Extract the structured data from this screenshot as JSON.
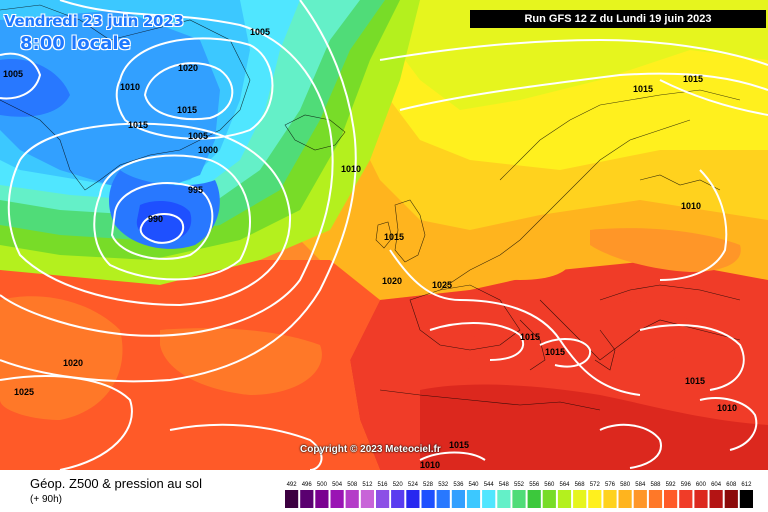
{
  "map": {
    "date_text": "Vendredi 23 juin 2023",
    "time_text": "8:00 locale",
    "run_text": "Run GFS 12 Z du Lundi 19 juin 2023",
    "copyright": "Copyright © 2023 Meteociel.fr",
    "isobar_labels": [
      "1005",
      "1005",
      "1010",
      "1015",
      "1020",
      "1015",
      "1005",
      "1000",
      "995",
      "990",
      "1010",
      "1015",
      "1020",
      "1025",
      "1015",
      "1010",
      "1015",
      "1015",
      "1015",
      "1020",
      "1025",
      "1015",
      "1010",
      "1015",
      "1010"
    ]
  },
  "footer": {
    "title": "Géop. Z500 & pression au sol",
    "subtitle": "(+ 90h)"
  },
  "legend": {
    "levels": [
      "492",
      "496",
      "500",
      "504",
      "508",
      "512",
      "516",
      "520",
      "524",
      "528",
      "532",
      "536",
      "540",
      "544",
      "548",
      "552",
      "556",
      "560",
      "564",
      "568",
      "572",
      "576",
      "580",
      "584",
      "588",
      "592",
      "596",
      "600",
      "604",
      "608",
      "612"
    ],
    "colors": [
      "#3c0040",
      "#5a0070",
      "#7a0090",
      "#9a14b4",
      "#b43cc8",
      "#c864d8",
      "#8c50e6",
      "#5a3cf0",
      "#2828f0",
      "#1e50ff",
      "#2878ff",
      "#32a0ff",
      "#3cc8ff",
      "#50e6ff",
      "#64f0c8",
      "#50dc78",
      "#3cc83c",
      "#78dc28",
      "#b4f01e",
      "#e6f51e",
      "#fff01e",
      "#ffd21e",
      "#ffb41e",
      "#ff9628",
      "#ff7828",
      "#ff5a28",
      "#f03c28",
      "#dc281e",
      "#b41414",
      "#8c0a0a",
      "#000000"
    ]
  }
}
